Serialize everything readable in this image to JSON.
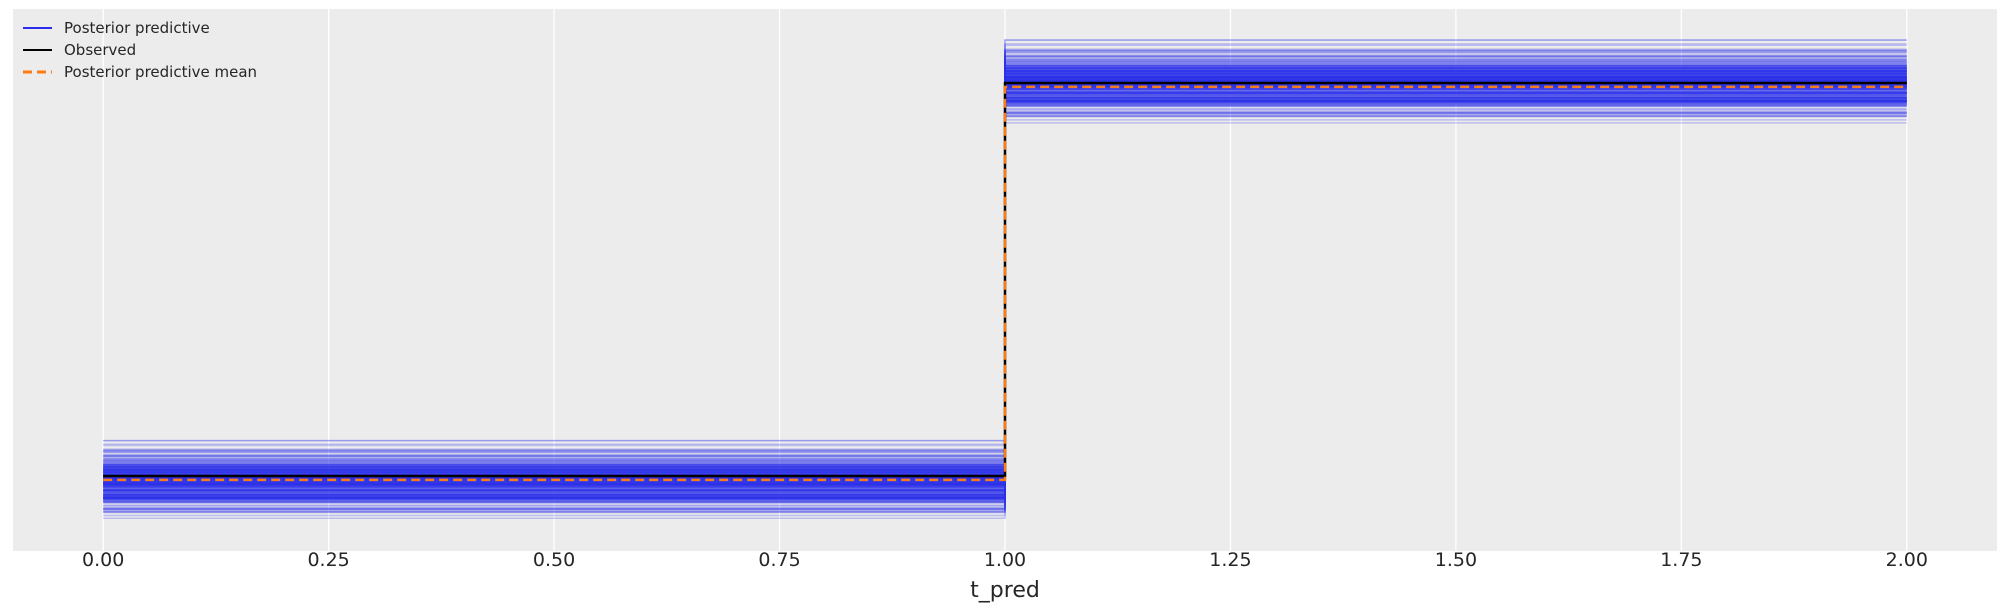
{
  "chart_data": {
    "type": "line",
    "title": "",
    "xlabel": "t_pred",
    "ylabel": "",
    "xlim": [
      -0.1,
      2.1
    ],
    "ylim": [
      -0.2,
      1.16
    ],
    "x_ticks": [
      "0.00",
      "0.25",
      "0.50",
      "0.75",
      "1.00",
      "1.25",
      "1.50",
      "1.75",
      "2.00"
    ],
    "x_tick_values": [
      0,
      0.25,
      0.5,
      0.75,
      1.0,
      1.25,
      1.5,
      1.75,
      2.0
    ],
    "y_ticks_visible": false,
    "grid": "vertical",
    "background": "#ececec",
    "legend_placement": "top-left",
    "legend": [
      "Posterior predictive",
      "Observed",
      "Posterior predictive mean"
    ],
    "series": [
      {
        "name": "Posterior predictive",
        "color": "#2a2eec",
        "x": [
          0,
          1,
          1,
          2
        ],
        "band_low": [
          -0.125,
          0.1
        ],
        "band_high": [
          0.88,
          1.12
        ],
        "samples": 300
      },
      {
        "name": "Observed",
        "color": "#000000",
        "x": [
          0,
          1,
          1,
          2
        ],
        "y": [
          0,
          0,
          1,
          1
        ]
      },
      {
        "name": "Posterior predictive mean",
        "color": "#fa7c17",
        "style": "dashed",
        "x": [
          0,
          1,
          1,
          2
        ],
        "y": [
          -0.01,
          -0.01,
          0.99,
          0.99
        ]
      }
    ]
  }
}
